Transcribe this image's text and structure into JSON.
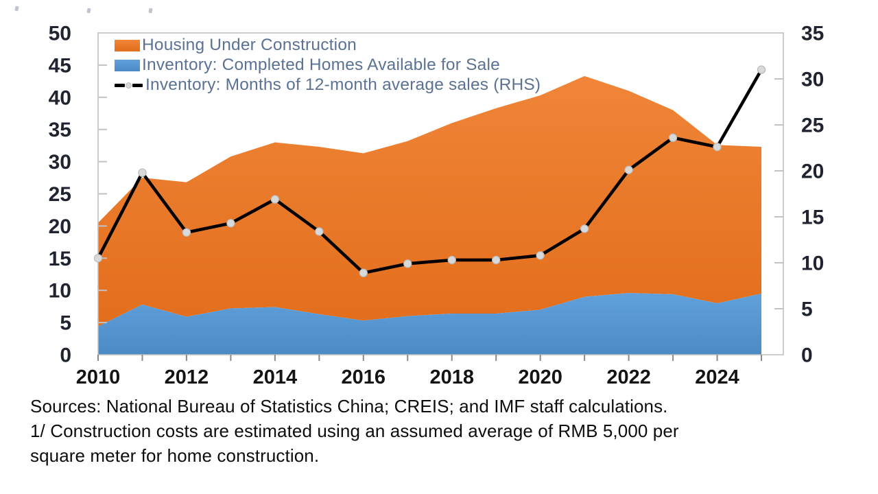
{
  "footer": {
    "lines": [
      "Sources: National Bureau of Statistics China; CREIS; and IMF staff calculations.",
      "1/ Construction costs are estimated using an assumed average of RMB 5,000 per square meter for home construction."
    ]
  },
  "colors": {
    "area_orange": "#ED7D31",
    "area_orange_gradient_top": "#F08538",
    "area_orange_gradient_bottom": "#E26E1C",
    "area_blue": "#5B9BD5",
    "area_blue_gradient_top": "#61A1DB",
    "area_blue_gradient_bottom": "#4C8AC6",
    "line_black": "#000000",
    "marker_gray": "#D9D9D9",
    "marker_edge": "#BBBBBB",
    "legend_text": "#5B7294",
    "axis_text": "#1F2430",
    "plot_border": "#BFBFBF",
    "inner_tick": "#C2C2C2",
    "bottom_tick": "#8A8A8A"
  },
  "chart_data": {
    "type": "area",
    "subtype": "stacked-area-with-rhs-line",
    "grid": "off",
    "legend_position": "top-left-inside",
    "x": [
      2010,
      2011,
      2012,
      2013,
      2014,
      2015,
      2016,
      2017,
      2018,
      2019,
      2020,
      2021,
      2022,
      2023,
      2024,
      2025
    ],
    "x_tick_labels": [
      "2010",
      "2012",
      "2014",
      "2016",
      "2018",
      "2020",
      "2022",
      "2024"
    ],
    "left_axis": {
      "min": 0,
      "max": 50,
      "step": 5,
      "tick_labels": [
        "0",
        "5",
        "10",
        "15",
        "20",
        "25",
        "30",
        "35",
        "40",
        "45",
        "50"
      ]
    },
    "right_axis": {
      "min": 0,
      "max": 35,
      "step": 5,
      "tick_labels": [
        "0",
        "5",
        "10",
        "15",
        "20",
        "25",
        "30",
        "35"
      ]
    },
    "series": [
      {
        "name": "Housing Under Construction",
        "type": "area",
        "axis": "left",
        "color": "#ED7D31",
        "stacking": "band drawn from top of blue series up to these cumulative stack-top values",
        "stack_top_values": [
          20.5,
          27.5,
          26.8,
          30.8,
          33.0,
          32.3,
          31.3,
          33.2,
          36.0,
          38.3,
          40.3,
          43.3,
          41.0,
          38.0,
          32.6,
          32.3
        ]
      },
      {
        "name": "Inventory: Completed Homes Available for Sale",
        "type": "area",
        "axis": "left",
        "color": "#5B9BD5",
        "values": [
          4.4,
          7.8,
          5.9,
          7.2,
          7.4,
          6.3,
          5.3,
          6.0,
          6.4,
          6.4,
          7.0,
          9.0,
          9.6,
          9.4,
          8.0,
          9.5
        ]
      },
      {
        "name": "Inventory: Months of 12-month average sales (RHS)",
        "type": "line",
        "axis": "right",
        "color": "#000000",
        "marker": "circle",
        "marker_color": "#D9D9D9",
        "values": [
          10.5,
          19.8,
          13.3,
          14.3,
          16.9,
          13.4,
          8.9,
          9.9,
          10.3,
          10.3,
          10.8,
          13.7,
          20.1,
          23.6,
          22.6,
          31.0
        ]
      }
    ]
  }
}
